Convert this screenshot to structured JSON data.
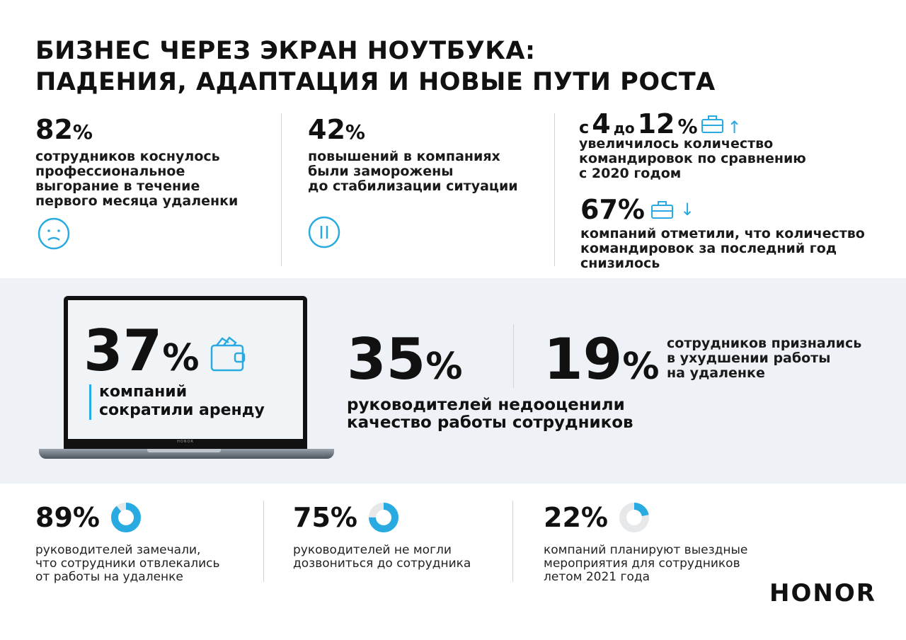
{
  "title": {
    "line1": "БИЗНЕС ЧЕРЕЗ ЭКРАН НОУТБУКА:",
    "line2": "ПАДЕНИЯ, АДАПТАЦИЯ И НОВЫЕ ПУТИ РОСТА"
  },
  "accent_color": "#29aae1",
  "top": [
    {
      "value": "82",
      "unit": "%",
      "text": [
        "сотрудников коснулось",
        "профессиональное",
        "выгорание в течение",
        "первого месяца удаленки"
      ],
      "icon": "sad-face-icon"
    },
    {
      "value": "42",
      "unit": "%",
      "text": [
        "повышений в компаниях",
        "были заморожены",
        "до стабилизации ситуации"
      ],
      "icon": "pause-icon"
    },
    {
      "prefix": "с",
      "from": "4",
      "mid": "до",
      "to": "12",
      "unit": "%",
      "text": [
        "увеличилось количество",
        "командировок по сравнению",
        "с 2020 годом"
      ],
      "icon": "briefcase-icon",
      "arrow": "↑"
    },
    {
      "value": "67%",
      "text": [
        "компаний отметили, что количество",
        "командировок за последний год",
        "снизилось"
      ],
      "icon": "briefcase-icon",
      "arrow": "↓"
    }
  ],
  "middle": {
    "laptop": {
      "value": "37",
      "unit": "%",
      "text": [
        "компаний",
        "сократили аренду"
      ],
      "icon": "wallet-icon",
      "brand": "HONOR"
    },
    "stat2": {
      "value": "35",
      "unit": "%",
      "text": [
        "руководителей недооценили",
        "качество работы сотрудников"
      ]
    },
    "stat3": {
      "value": "19",
      "unit": "%",
      "text": [
        "сотрудников признались",
        "в ухудшении работы",
        "на удаленке"
      ]
    }
  },
  "bottom": [
    {
      "value": "89%",
      "fraction": 0.89,
      "text": [
        "руководителей замечали,",
        "что сотрудники отвлекались",
        "от работы на удаленке"
      ]
    },
    {
      "value": "75%",
      "fraction": 0.75,
      "text": [
        "руководителей не могли",
        "дозвониться до сотрудника"
      ]
    },
    {
      "value": "22%",
      "fraction": 0.22,
      "text": [
        "компаний планируют выездные",
        "мероприятия для сотрудников",
        "летом 2021 года"
      ]
    }
  ],
  "logo": "HONOR"
}
